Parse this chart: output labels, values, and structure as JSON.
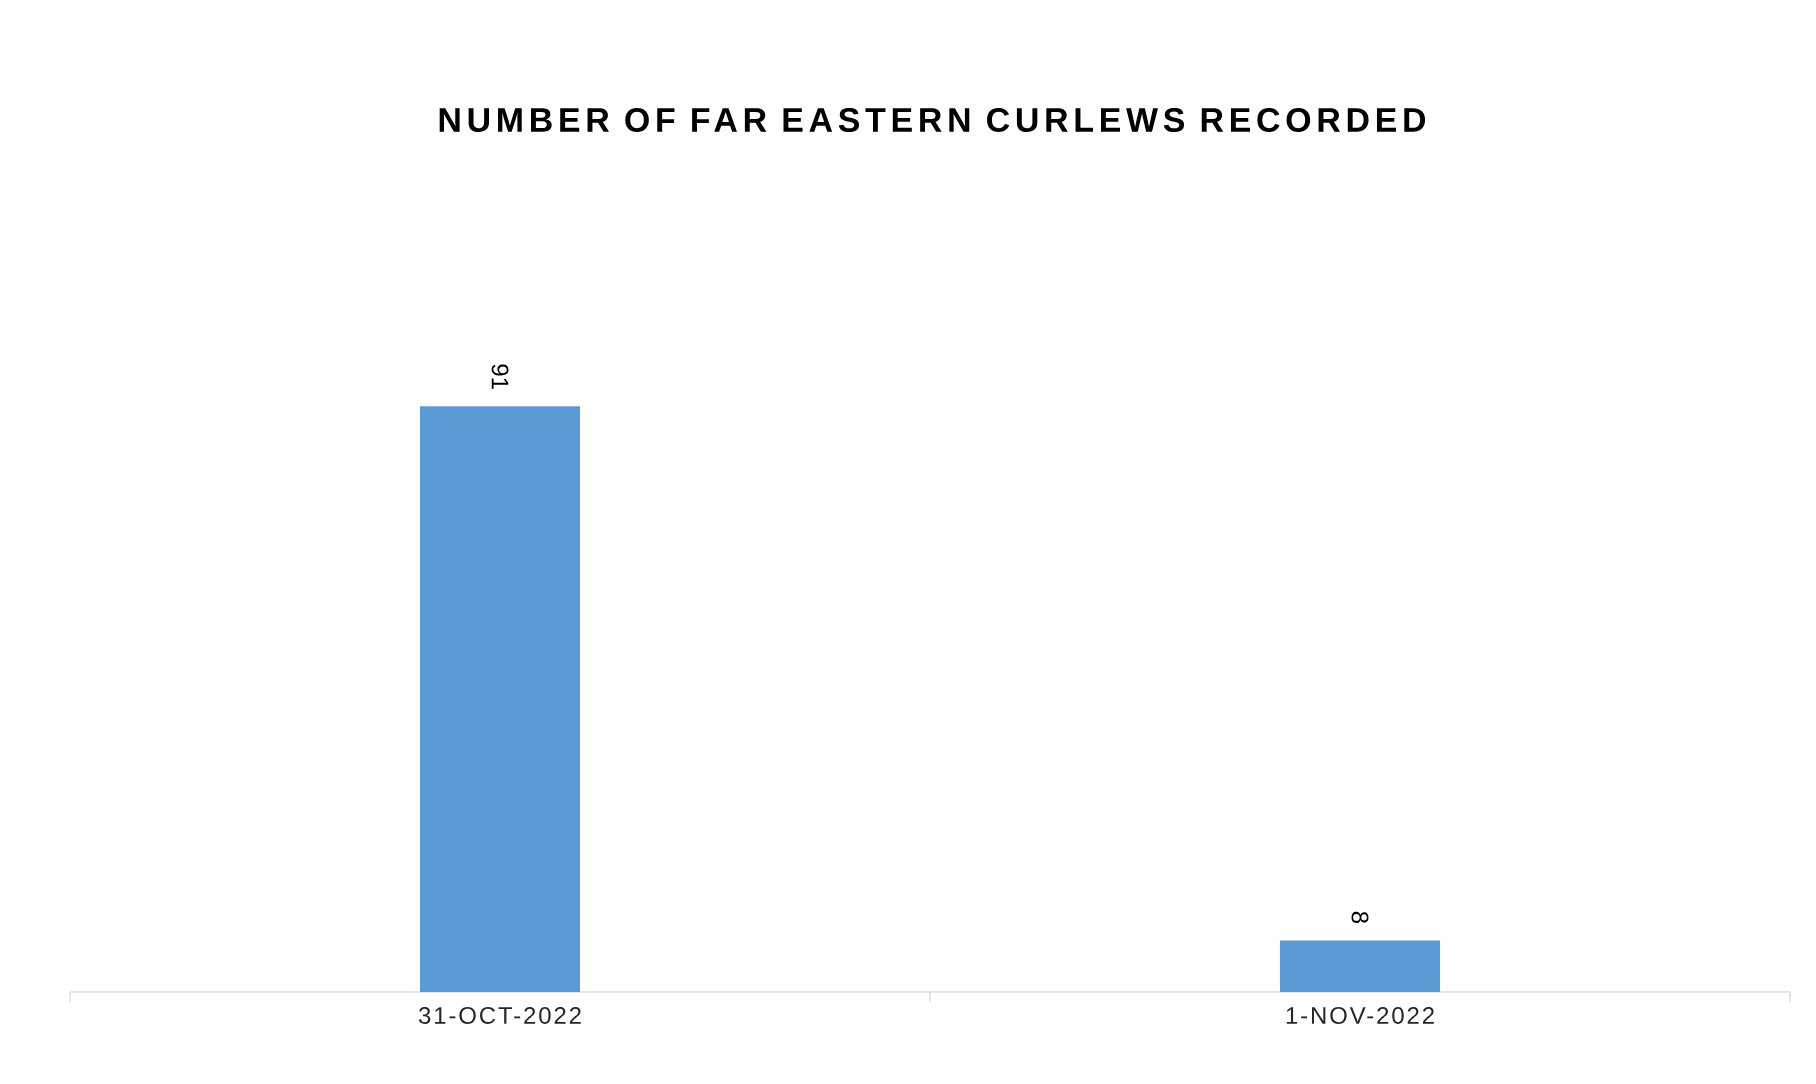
{
  "chart_data": {
    "type": "bar",
    "title": "NUMBER OF FAR EASTERN CURLEWS RECORDED",
    "categories": [
      "31-OCT-2022",
      "1-NOV-2022"
    ],
    "values": [
      91,
      8
    ],
    "color": "#5b9bd5",
    "data_labels": true
  }
}
